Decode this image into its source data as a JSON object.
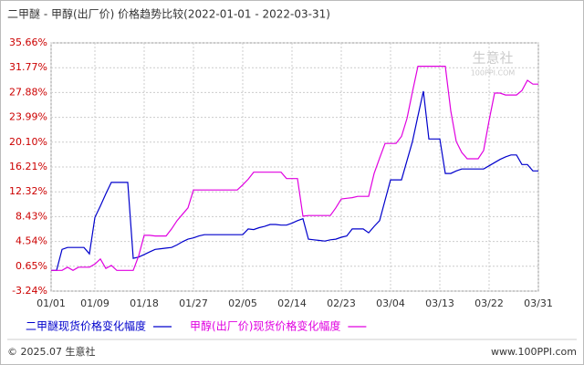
{
  "chart_data": {
    "type": "line",
    "title": "二甲醚 - 甲醇(出厂价) 价格趋势比较(2022-01-01 - 2022-03-31)",
    "categories": [
      "01/01",
      null,
      null,
      null,
      null,
      null,
      null,
      null,
      "01/09",
      null,
      null,
      null,
      null,
      null,
      null,
      null,
      null,
      "01/18",
      null,
      null,
      null,
      null,
      null,
      null,
      null,
      null,
      "01/27",
      null,
      null,
      null,
      null,
      null,
      null,
      null,
      null,
      "02/05",
      null,
      null,
      null,
      null,
      null,
      null,
      null,
      null,
      "02/14",
      null,
      null,
      null,
      null,
      null,
      null,
      null,
      null,
      "02/23",
      null,
      null,
      null,
      null,
      null,
      null,
      null,
      null,
      "03/04",
      null,
      null,
      null,
      null,
      null,
      null,
      null,
      null,
      "03/13",
      null,
      null,
      null,
      null,
      null,
      null,
      null,
      null,
      "03/22",
      null,
      null,
      null,
      null,
      null,
      null,
      null,
      null,
      "03/31"
    ],
    "series": [
      {
        "name": "二甲醚现货价格变化幅度",
        "color": "#0000cc",
        "values": [
          0,
          0,
          3.3,
          3.6,
          3.6,
          3.6,
          3.6,
          2.6,
          8.3,
          10.1,
          12.0,
          13.8,
          13.8,
          13.8,
          13.8,
          1.9,
          2.1,
          2.5,
          2.9,
          3.3,
          3.4,
          3.5,
          3.6,
          4.0,
          4.5,
          4.9,
          5.1,
          5.4,
          5.6,
          5.6,
          5.6,
          5.6,
          5.6,
          5.6,
          5.6,
          5.6,
          6.5,
          6.4,
          6.7,
          6.9,
          7.2,
          7.2,
          7.1,
          7.1,
          7.4,
          7.8,
          8.1,
          4.9,
          4.8,
          4.7,
          4.6,
          4.8,
          4.9,
          5.2,
          5.4,
          6.5,
          6.5,
          6.5,
          5.9,
          6.9,
          7.8,
          11.0,
          14.2,
          14.2,
          14.2,
          17.2,
          20.2,
          24.2,
          28.1,
          20.6,
          20.6,
          20.6,
          15.2,
          15.2,
          15.6,
          15.9,
          15.9,
          15.9,
          15.9,
          15.9,
          16.4,
          16.9,
          17.4,
          17.8,
          18.1,
          18.1,
          16.6,
          16.6,
          15.6,
          15.6
        ]
      },
      {
        "name": "甲醇(出厂价)现货价格变化幅度",
        "color": "#e000e0",
        "values": [
          0,
          0,
          0,
          0.5,
          0,
          0.5,
          0.5,
          0.5,
          1.0,
          1.8,
          0.3,
          0.8,
          0,
          0,
          0,
          0,
          2.3,
          5.5,
          5.5,
          5.4,
          5.4,
          5.4,
          6.5,
          7.8,
          8.8,
          9.8,
          12.6,
          12.6,
          12.6,
          12.6,
          12.6,
          12.6,
          12.6,
          12.6,
          12.6,
          13.4,
          14.3,
          15.4,
          15.4,
          15.4,
          15.4,
          15.4,
          15.4,
          14.4,
          14.4,
          14.4,
          8.5,
          8.6,
          8.6,
          8.6,
          8.6,
          8.6,
          9.8,
          11.2,
          11.3,
          11.4,
          11.6,
          11.6,
          11.6,
          15.2,
          17.6,
          19.9,
          19.9,
          19.9,
          21.0,
          23.8,
          28.0,
          32.0,
          32.0,
          32.0,
          32.0,
          32.0,
          32.0,
          25.0,
          20.2,
          18.5,
          17.5,
          17.5,
          17.5,
          18.8,
          23.5,
          27.8,
          27.8,
          27.5,
          27.5,
          27.5,
          28.2,
          29.8,
          29.2,
          29.2
        ]
      }
    ],
    "ylim": [
      -3.24,
      35.66
    ],
    "yticks": [
      {
        "value": -3.24,
        "label": "-3.24%"
      },
      {
        "value": 0.65,
        "label": "0.65%"
      },
      {
        "value": 4.54,
        "label": "4.54%"
      },
      {
        "value": 8.43,
        "label": "8.43%"
      },
      {
        "value": 12.32,
        "label": "12.32%"
      },
      {
        "value": 16.21,
        "label": "16.21%"
      },
      {
        "value": 20.1,
        "label": "20.10%"
      },
      {
        "value": 23.99,
        "label": "23.99%"
      },
      {
        "value": 27.88,
        "label": "27.88%"
      },
      {
        "value": 31.77,
        "label": "31.77%"
      },
      {
        "value": 35.66,
        "label": "35.66%"
      }
    ],
    "grid": true,
    "watermark": [
      "生意社",
      "100PPI.COM"
    ],
    "footer_left": "© 2025.07 生意社",
    "footer_right": "www.100PPI.com"
  }
}
